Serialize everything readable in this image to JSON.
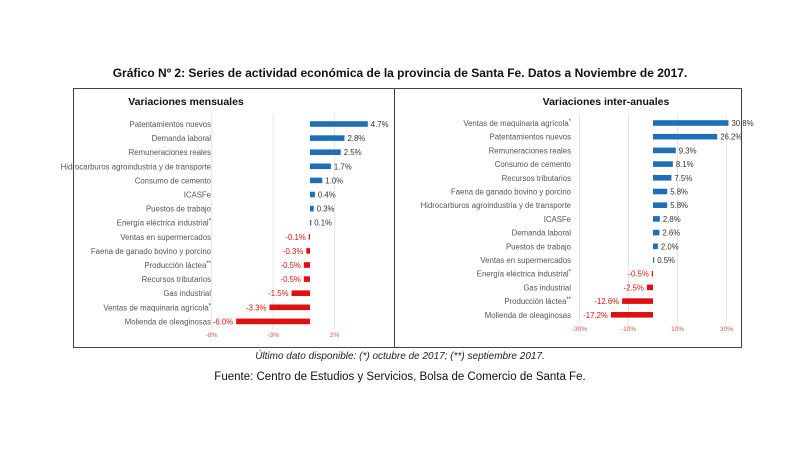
{
  "title": "Gráfico Nº 2: Series de actividad económica de la provincia de Santa Fe. Datos a Noviembre de 2017.",
  "footnote": "Último dato disponible: (*) octubre de 2017; (**) septiembre 2017.",
  "source": "Fuente: Centro de Estudios y Servicios, Bolsa de Comercio de Santa Fe.",
  "colors": {
    "positive": "#1f6fb8",
    "negative": "#e01010",
    "label": "#555555"
  },
  "chart_data": [
    {
      "type": "bar",
      "orientation": "horizontal",
      "title": "Variaciones mensuales",
      "categories": [
        "Patentamientos nuevos",
        "Demanda laboral",
        "Remuneraciones reales",
        "Hidrocarburos agroindustria y de transporte",
        "Consumo de cemento",
        "ICASFe",
        "Puestos de trabajo",
        "Energía eléctrica industrial",
        "Ventas en supermercados",
        "Faena de ganado bovino y porcino",
        "Producción láctea",
        "Recursos tributarios",
        "Gas industrial",
        "Ventas de maquinaria agrícola",
        "Molienda de oleaginosas"
      ],
      "notes": [
        "",
        "",
        "",
        "",
        "",
        "",
        "",
        "*",
        "",
        "",
        "**",
        "",
        "",
        "*",
        ""
      ],
      "values": [
        4.7,
        2.8,
        2.5,
        1.7,
        1.0,
        0.4,
        0.3,
        0.1,
        -0.1,
        -0.3,
        -0.5,
        -0.5,
        -1.5,
        -3.3,
        -6.0
      ],
      "value_labels": [
        "4.7%",
        "2.8%",
        "2.5%",
        "1.7%",
        "1.0%",
        "0.4%",
        "0.3%",
        "0.1%",
        "-0.1%",
        "-0.3%",
        "-0.5%",
        "-0.5%",
        "-1.5%",
        "-3.3%",
        "-6.0%"
      ],
      "xticks": [
        -8,
        -3,
        2
      ],
      "xtick_labels": [
        "-8%",
        "-3%",
        "2%"
      ],
      "xlim": [
        -8,
        5
      ]
    },
    {
      "type": "bar",
      "orientation": "horizontal",
      "title": "Variaciones inter-anuales",
      "categories": [
        "Ventas de maquinaria agrícola",
        "Patentamientos nuevos",
        "Remuneraciones reales",
        "Consumo de cemento",
        "Recursos tributarios",
        "Faena de ganado bovino y porcino",
        "Hidrocarburos agroindustria y de transporte",
        "ICASFe",
        "Demanda laboral",
        "Puestos de trabajo",
        "Ventas en supermercados",
        "Energía eléctrica industrial",
        "Gas industrial",
        "Producción láctea",
        "Molienda de oleaginosas"
      ],
      "notes": [
        "*",
        "",
        "",
        "",
        "",
        "",
        "",
        "",
        "",
        "",
        "",
        "*",
        "",
        "**",
        ""
      ],
      "values": [
        30.8,
        26.2,
        9.3,
        8.1,
        7.5,
        5.8,
        5.8,
        2.8,
        2.6,
        2.0,
        0.5,
        -0.5,
        -2.5,
        -12.6,
        -17.2
      ],
      "value_labels": [
        "30.8%",
        "26.2%",
        "9.3%",
        "8.1%",
        "7.5%",
        "5.8%",
        "5.8%",
        "2.8%",
        "2.6%",
        "2.0%",
        "0.5%",
        "-0.5%",
        "-2.5%",
        "-12.6%",
        "-17.2%"
      ],
      "xticks": [
        -30,
        -10,
        10,
        30
      ],
      "xtick_labels": [
        "-30%",
        "-10%",
        "10%",
        "30%"
      ],
      "xlim": [
        -30,
        33
      ]
    }
  ]
}
